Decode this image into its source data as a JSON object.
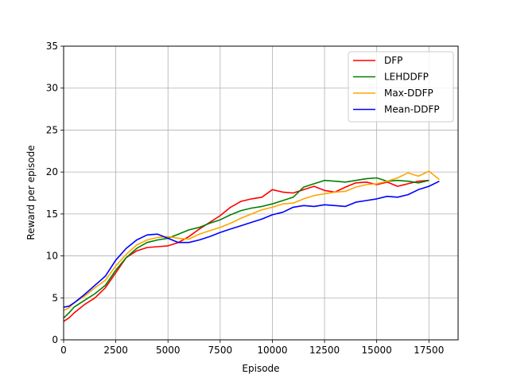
{
  "chart_data": {
    "type": "line",
    "title": "",
    "xlabel": "Episode",
    "ylabel": "Reward per episode",
    "xlim": [
      0,
      18900
    ],
    "ylim": [
      0,
      35
    ],
    "xticks": [
      0,
      2500,
      5000,
      7500,
      10000,
      12500,
      15000,
      17500
    ],
    "xtick_labels": [
      "0",
      "2500",
      "5000",
      "7500",
      "10000",
      "12500",
      "15000",
      "17500"
    ],
    "yticks": [
      0,
      5,
      10,
      15,
      20,
      25,
      30,
      35
    ],
    "ytick_labels": [
      "0",
      "5",
      "10",
      "15",
      "20",
      "25",
      "30",
      "35"
    ],
    "grid": true,
    "legend_position": "top-right",
    "series": [
      {
        "name": "DFP",
        "color": "#ff0000",
        "x": [
          0,
          250,
          500,
          1000,
          1500,
          2000,
          2500,
          3000,
          3500,
          4000,
          4500,
          5000,
          5500,
          6000,
          6500,
          7000,
          7500,
          8000,
          8500,
          9000,
          9500,
          10000,
          10500,
          11000,
          11500,
          12000,
          12500,
          13000,
          13500,
          14000,
          14500,
          15000,
          15500,
          16000,
          16500,
          17000,
          17500
        ],
        "values": [
          2.2,
          2.6,
          3.2,
          4.2,
          5.0,
          6.2,
          8.0,
          9.8,
          10.6,
          11.0,
          11.1,
          11.2,
          11.6,
          12.3,
          13.2,
          14.0,
          14.8,
          15.8,
          16.5,
          16.8,
          17.0,
          17.9,
          17.6,
          17.5,
          17.9,
          18.3,
          17.8,
          17.6,
          18.2,
          18.7,
          18.8,
          18.5,
          18.8,
          18.3,
          18.6,
          18.9,
          19.0
        ]
      },
      {
        "name": "LEHDDFP",
        "color": "#008000",
        "x": [
          0,
          250,
          500,
          1000,
          1500,
          2000,
          2500,
          3000,
          3500,
          4000,
          4500,
          5000,
          5500,
          6000,
          6500,
          7000,
          7500,
          8000,
          8500,
          9000,
          9500,
          10000,
          10500,
          11000,
          11500,
          12000,
          12500,
          13000,
          13500,
          14000,
          14500,
          15000,
          15500,
          16000,
          16500,
          17000,
          17500
        ],
        "values": [
          2.6,
          3.2,
          3.9,
          4.7,
          5.5,
          6.5,
          8.3,
          9.8,
          10.9,
          11.6,
          11.9,
          12.1,
          12.6,
          13.1,
          13.4,
          13.9,
          14.3,
          14.9,
          15.4,
          15.7,
          15.9,
          16.2,
          16.6,
          17.0,
          18.2,
          18.6,
          19.0,
          18.9,
          18.8,
          19.0,
          19.2,
          19.3,
          18.9,
          19.0,
          18.9,
          18.7,
          19.0
        ]
      },
      {
        "name": "Max-DDFP",
        "color": "#ffa500",
        "x": [
          0,
          250,
          500,
          1000,
          1500,
          2000,
          2500,
          3000,
          3500,
          4000,
          4500,
          5000,
          5500,
          6000,
          6500,
          7000,
          7500,
          8000,
          8500,
          9000,
          9500,
          10000,
          10500,
          11000,
          11500,
          12000,
          12500,
          13000,
          13500,
          14000,
          14500,
          15000,
          15500,
          16000,
          16500,
          17000,
          17500,
          18000
        ],
        "values": [
          3.5,
          3.8,
          4.4,
          5.2,
          6.2,
          7.1,
          8.8,
          10.2,
          11.3,
          11.9,
          12.2,
          12.3,
          12.1,
          12.0,
          12.6,
          13.0,
          13.4,
          13.9,
          14.5,
          15.0,
          15.5,
          15.8,
          16.2,
          16.3,
          16.8,
          17.2,
          17.4,
          17.6,
          17.7,
          18.2,
          18.5,
          18.6,
          18.9,
          19.3,
          19.9,
          19.5,
          20.1,
          19.1
        ]
      },
      {
        "name": "Mean-DDFP",
        "color": "#0000ff",
        "x": [
          0,
          250,
          500,
          1000,
          1500,
          2000,
          2500,
          3000,
          3500,
          4000,
          4500,
          5000,
          5500,
          6000,
          6500,
          7000,
          7500,
          8000,
          8500,
          9000,
          9500,
          10000,
          10500,
          11000,
          11500,
          12000,
          12500,
          13000,
          13500,
          14000,
          14500,
          15000,
          15500,
          16000,
          16500,
          17000,
          17500,
          18000
        ],
        "values": [
          3.9,
          4.0,
          4.4,
          5.4,
          6.5,
          7.6,
          9.5,
          10.9,
          11.9,
          12.5,
          12.6,
          12.1,
          11.6,
          11.6,
          11.9,
          12.3,
          12.8,
          13.2,
          13.6,
          14.0,
          14.4,
          14.9,
          15.2,
          15.8,
          16.0,
          15.9,
          16.1,
          16.0,
          15.9,
          16.4,
          16.6,
          16.8,
          17.1,
          17.0,
          17.3,
          17.9,
          18.3,
          18.9
        ]
      }
    ]
  }
}
